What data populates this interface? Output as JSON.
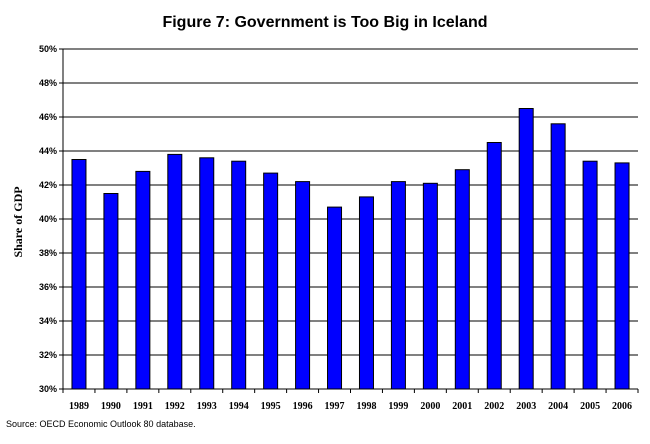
{
  "chart_data": {
    "type": "bar",
    "title": "Figure 7: Government is Too Big in Iceland",
    "xlabel": "",
    "ylabel": "Share of GDP",
    "categories": [
      "1989",
      "1990",
      "1991",
      "1992",
      "1993",
      "1994",
      "1995",
      "1996",
      "1997",
      "1998",
      "1999",
      "2000",
      "2001",
      "2002",
      "2003",
      "2004",
      "2005",
      "2006"
    ],
    "values": [
      43.5,
      41.5,
      42.8,
      43.8,
      43.6,
      43.4,
      42.7,
      42.2,
      40.7,
      41.3,
      42.2,
      42.1,
      42.9,
      44.5,
      46.5,
      45.6,
      43.4,
      43.3
    ],
    "ylim": [
      30,
      50
    ],
    "yticks": [
      "30%",
      "32%",
      "34%",
      "36%",
      "38%",
      "40%",
      "42%",
      "44%",
      "46%",
      "48%",
      "50%"
    ],
    "grid": true,
    "bar_color": "#0000ff",
    "source": "Source: OECD Economic Outlook 80 database."
  }
}
